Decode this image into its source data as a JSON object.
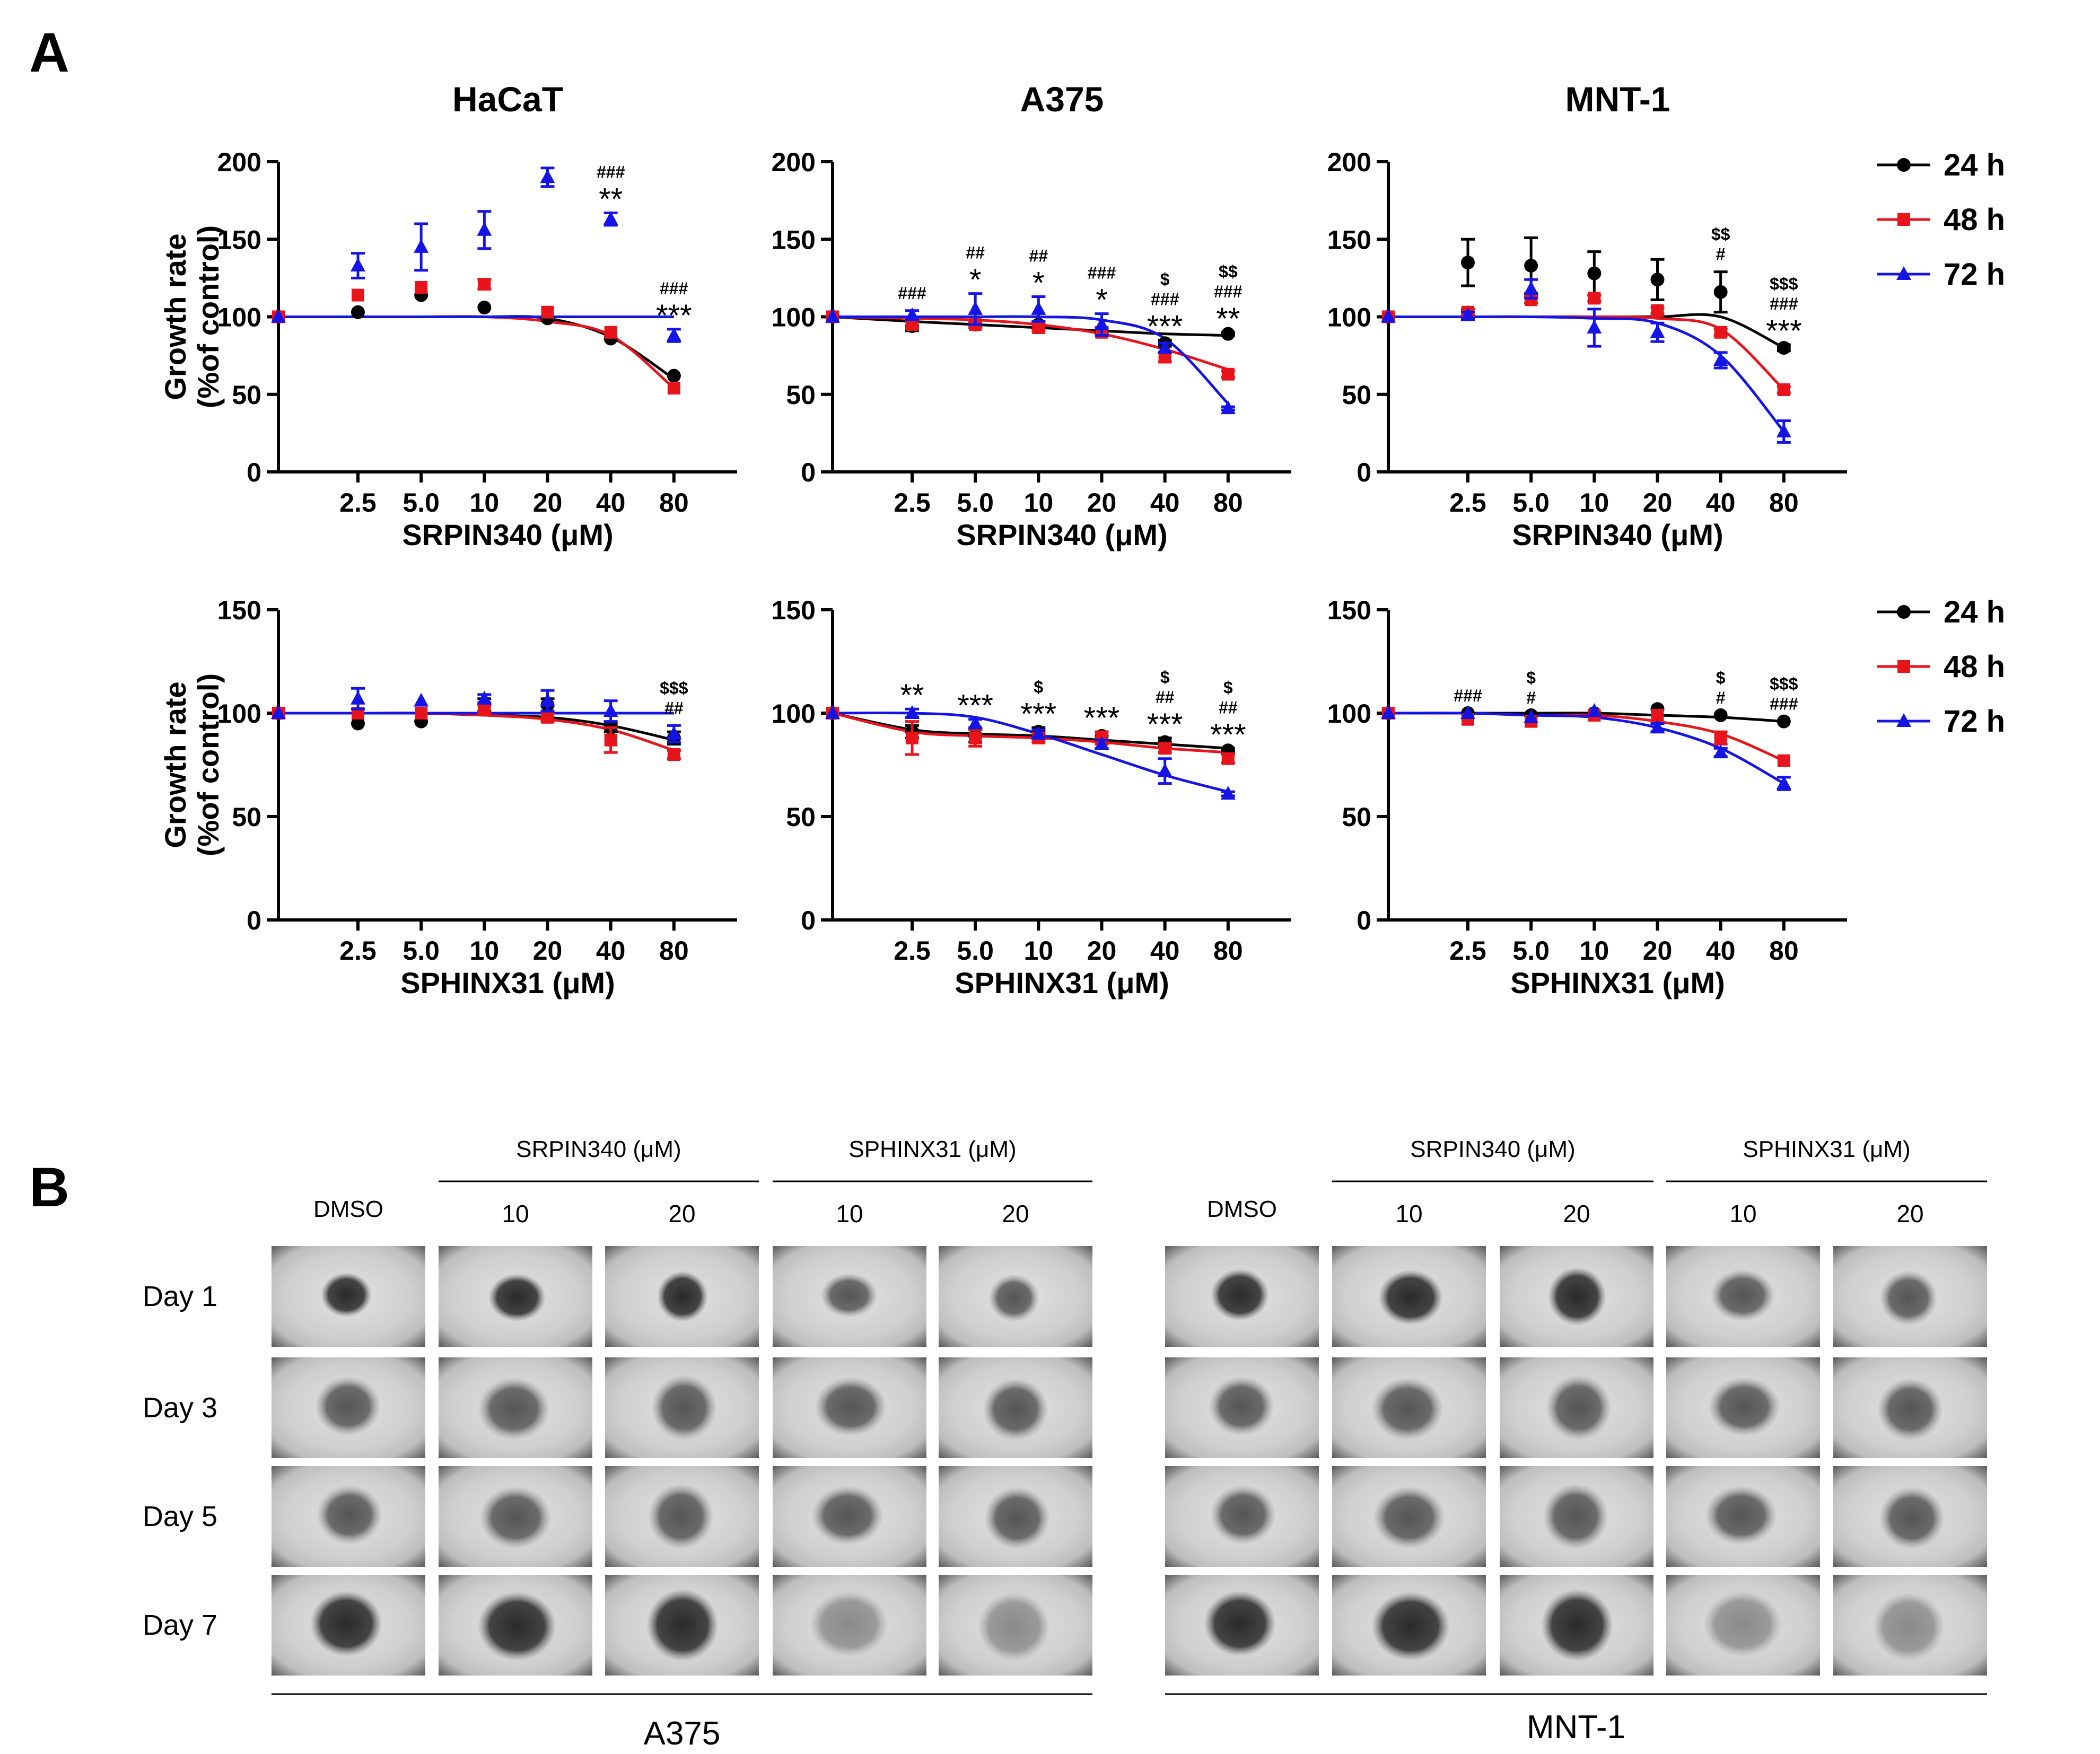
{
  "panel_a_label": "A",
  "panel_b_label": "B",
  "legend": [
    {
      "label": "24 h",
      "color": "#000000",
      "marker": "circle"
    },
    {
      "label": "48 h",
      "color": "#e8141b",
      "marker": "square"
    },
    {
      "label": "72 h",
      "color": "#1414e6",
      "marker": "triangle"
    }
  ],
  "chart_data": [
    {
      "type": "scatter",
      "title": "HaCaT",
      "xlabel": "SRPIN340 (μM)",
      "ylabel": "Growth rate (%of control)",
      "x": [
        0,
        2.5,
        5.0,
        10,
        20,
        40,
        80
      ],
      "x_tick_labels": [
        "2.5",
        "5.0",
        "10",
        "20",
        "40",
        "80"
      ],
      "ylim": [
        0,
        200
      ],
      "yticks": [
        0,
        50,
        100,
        150,
        200
      ],
      "x_scale": "log",
      "series": [
        {
          "name": "24 h",
          "values": [
            100,
            103,
            114,
            106,
            99,
            86,
            62
          ],
          "errors": [
            0,
            0,
            0,
            0,
            0,
            0,
            0
          ],
          "fit": [
            100,
            100,
            100,
            100,
            99,
            87,
            60
          ]
        },
        {
          "name": "48 h",
          "values": [
            100,
            114,
            119,
            121,
            103,
            90,
            54
          ],
          "errors": [
            0,
            0,
            0,
            3,
            0,
            0,
            0
          ],
          "fit": [
            100,
            100,
            100,
            100,
            97,
            88,
            54
          ]
        },
        {
          "name": "72 h",
          "values": [
            100,
            133,
            145,
            156,
            190,
            163,
            88
          ],
          "errors": [
            0,
            8,
            15,
            12,
            6,
            4,
            4
          ],
          "fit": [
            100,
            100,
            100,
            100,
            100,
            100,
            100
          ]
        }
      ],
      "annotations": [
        {
          "x": 40,
          "lines": [
            "###",
            "**"
          ]
        },
        {
          "x": 80,
          "lines": [
            "###",
            "***"
          ]
        }
      ]
    },
    {
      "type": "scatter",
      "title": "A375",
      "xlabel": "SRPIN340 (μM)",
      "ylabel": "",
      "x": [
        0,
        2.5,
        5.0,
        10,
        20,
        40,
        80
      ],
      "x_tick_labels": [
        "2.5",
        "5.0",
        "10",
        "20",
        "40",
        "80"
      ],
      "ylim": [
        0,
        200
      ],
      "yticks": [
        0,
        50,
        100,
        150,
        200
      ],
      "x_scale": "log",
      "series": [
        {
          "name": "24 h",
          "values": [
            100,
            94,
            95,
            95,
            91,
            83,
            89
          ],
          "errors": [
            0,
            3,
            2,
            2,
            2,
            2,
            1
          ],
          "fit": [
            100,
            97,
            95,
            93,
            91,
            89,
            88
          ]
        },
        {
          "name": "48 h",
          "values": [
            100,
            95,
            95,
            93,
            90,
            74,
            63
          ],
          "errors": [
            0,
            2,
            2,
            2,
            2,
            3,
            2
          ],
          "fit": [
            100,
            99,
            98,
            95,
            89,
            79,
            66
          ]
        },
        {
          "name": "72 h",
          "values": [
            100,
            101,
            105,
            105,
            95,
            80,
            41
          ],
          "errors": [
            0,
            3,
            10,
            8,
            7,
            3,
            1
          ],
          "fit": [
            100,
            100,
            100,
            100,
            98,
            86,
            44
          ]
        }
      ],
      "annotations": [
        {
          "x": 2.5,
          "lines": [
            "###"
          ]
        },
        {
          "x": 5.0,
          "lines": [
            "##",
            "*"
          ]
        },
        {
          "x": 10,
          "lines": [
            "##",
            "*"
          ]
        },
        {
          "x": 20,
          "lines": [
            "###",
            "*"
          ]
        },
        {
          "x": 40,
          "lines": [
            "$",
            "###",
            "***"
          ]
        },
        {
          "x": 80,
          "lines": [
            "$$",
            "###",
            "**"
          ]
        }
      ]
    },
    {
      "type": "scatter",
      "title": "MNT-1",
      "xlabel": "SRPIN340 (μM)",
      "ylabel": "",
      "x": [
        0,
        2.5,
        5.0,
        10,
        20,
        40,
        80
      ],
      "x_tick_labels": [
        "2.5",
        "5.0",
        "10",
        "20",
        "40",
        "80"
      ],
      "ylim": [
        0,
        200
      ],
      "yticks": [
        0,
        50,
        100,
        150,
        200
      ],
      "x_scale": "log",
      "series": [
        {
          "name": "24 h",
          "values": [
            100,
            135,
            133,
            128,
            124,
            116,
            80
          ],
          "errors": [
            0,
            15,
            18,
            14,
            13,
            13,
            2
          ],
          "fit": [
            100,
            100,
            100,
            100,
            100,
            100,
            80
          ]
        },
        {
          "name": "48 h",
          "values": [
            100,
            103,
            111,
            112,
            104,
            90,
            53
          ],
          "errors": [
            0,
            2,
            2,
            2,
            2,
            2,
            2
          ],
          "fit": [
            100,
            100,
            100,
            100,
            99,
            92,
            53
          ]
        },
        {
          "name": "72 h",
          "values": [
            100,
            101,
            118,
            93,
            90,
            72,
            26
          ],
          "errors": [
            0,
            2,
            6,
            12,
            6,
            5,
            7
          ],
          "fit": [
            100,
            100,
            100,
            99,
            96,
            75,
            26
          ]
        }
      ],
      "annotations": [
        {
          "x": 40,
          "lines": [
            "$$",
            "#"
          ]
        },
        {
          "x": 80,
          "lines": [
            "$$$",
            "###",
            "***"
          ]
        }
      ]
    },
    {
      "type": "scatter",
      "title": "",
      "xlabel": "SPHINX31 (μM)",
      "ylabel": "Growth rate (%of control)",
      "x": [
        0,
        2.5,
        5.0,
        10,
        20,
        40,
        80
      ],
      "x_tick_labels": [
        "2.5",
        "5.0",
        "10",
        "20",
        "40",
        "80"
      ],
      "ylim": [
        0,
        150
      ],
      "yticks": [
        0,
        50,
        100,
        150
      ],
      "x_scale": "log",
      "series": [
        {
          "name": "24 h",
          "values": [
            100,
            95,
            96,
            104,
            104,
            93,
            88
          ],
          "errors": [
            0,
            0,
            0,
            3,
            3,
            2,
            3
          ],
          "fit": [
            100,
            100,
            100,
            99,
            98,
            94,
            87
          ]
        },
        {
          "name": "48 h",
          "values": [
            100,
            100,
            100,
            102,
            98,
            87,
            80
          ],
          "errors": [
            0,
            0,
            0,
            2,
            2,
            6,
            2
          ],
          "fit": [
            100,
            100,
            100,
            99,
            97,
            92,
            82
          ]
        },
        {
          "name": "72 h",
          "values": [
            100,
            107,
            106,
            107,
            106,
            101,
            90
          ],
          "errors": [
            0,
            5,
            0,
            2,
            5,
            5,
            4
          ],
          "fit": [
            100,
            100,
            100,
            100,
            100,
            100,
            100
          ]
        }
      ],
      "annotations": [
        {
          "x": 80,
          "lines": [
            "$$$",
            "##"
          ]
        }
      ]
    },
    {
      "type": "scatter",
      "title": "",
      "xlabel": "SPHINX31 (μM)",
      "ylabel": "",
      "x": [
        0,
        2.5,
        5.0,
        10,
        20,
        40,
        80
      ],
      "x_tick_labels": [
        "2.5",
        "5.0",
        "10",
        "20",
        "40",
        "80"
      ],
      "ylim": [
        0,
        150
      ],
      "yticks": [
        0,
        50,
        100,
        150
      ],
      "x_scale": "log",
      "series": [
        {
          "name": "24 h",
          "values": [
            100,
            91,
            89,
            91,
            89,
            86,
            82
          ],
          "errors": [
            0,
            3,
            3,
            2,
            2,
            2,
            1
          ],
          "fit": [
            100,
            92,
            90,
            89,
            87,
            85,
            83
          ]
        },
        {
          "name": "48 h",
          "values": [
            100,
            88,
            88,
            88,
            88,
            83,
            78
          ],
          "errors": [
            0,
            8,
            4,
            2,
            3,
            2,
            2
          ],
          "fit": [
            100,
            91,
            89,
            88,
            86,
            83,
            81
          ]
        },
        {
          "name": "72 h",
          "values": [
            100,
            100,
            95,
            90,
            85,
            72,
            61
          ],
          "errors": [
            0,
            2,
            2,
            2,
            2,
            6,
            1
          ],
          "fit": [
            100,
            100,
            98,
            90,
            80,
            70,
            62
          ]
        }
      ],
      "annotations": [
        {
          "x": 2.5,
          "lines": [
            "**"
          ]
        },
        {
          "x": 5.0,
          "lines": [
            "***"
          ]
        },
        {
          "x": 10,
          "lines": [
            "$",
            "***"
          ]
        },
        {
          "x": 20,
          "lines": [
            "***"
          ]
        },
        {
          "x": 40,
          "lines": [
            "$",
            "##",
            "***"
          ]
        },
        {
          "x": 80,
          "lines": [
            "$",
            "##",
            "***"
          ]
        }
      ]
    },
    {
      "type": "scatter",
      "title": "",
      "xlabel": "SPHINX31 (μM)",
      "ylabel": "",
      "x": [
        0,
        2.5,
        5.0,
        10,
        20,
        40,
        80
      ],
      "x_tick_labels": [
        "2.5",
        "5.0",
        "10",
        "20",
        "40",
        "80"
      ],
      "ylim": [
        0,
        150
      ],
      "yticks": [
        0,
        50,
        100,
        150
      ],
      "x_scale": "log",
      "series": [
        {
          "name": "24 h",
          "values": [
            100,
            100,
            99,
            100,
            102,
            99,
            96
          ],
          "errors": [
            0,
            0,
            0,
            0,
            0,
            0,
            0
          ],
          "fit": [
            100,
            100,
            100,
            100,
            99,
            98,
            96
          ]
        },
        {
          "name": "48 h",
          "values": [
            100,
            97,
            96,
            99,
            99,
            88,
            77
          ],
          "errors": [
            0,
            0,
            0,
            0,
            0,
            3,
            0
          ],
          "fit": [
            100,
            100,
            99,
            99,
            96,
            90,
            77
          ]
        },
        {
          "name": "72 h",
          "values": [
            100,
            100,
            98,
            101,
            93,
            81,
            66
          ],
          "errors": [
            0,
            0,
            0,
            0,
            2,
            2,
            3
          ],
          "fit": [
            100,
            100,
            99,
            98,
            93,
            83,
            66
          ]
        }
      ],
      "annotations": [
        {
          "x": 2.5,
          "lines": [
            "###"
          ]
        },
        {
          "x": 5.0,
          "lines": [
            "$",
            "#"
          ]
        },
        {
          "x": 40,
          "lines": [
            "$",
            "#"
          ]
        },
        {
          "x": 80,
          "lines": [
            "$$$",
            "###"
          ]
        }
      ]
    }
  ],
  "panel_b": {
    "row_labels": [
      "Day 1",
      "Day 3",
      "Day 5",
      "Day 7"
    ],
    "groups": [
      {
        "cell_line": "A375",
        "dmso_label": "DMSO",
        "drugs": [
          {
            "name": "SRPIN340 (μM)",
            "doses": [
              "10",
              "20"
            ]
          },
          {
            "name": "SPHINX31 (μM)",
            "doses": [
              "10",
              "20"
            ]
          }
        ]
      },
      {
        "cell_line": "MNT-1",
        "dmso_label": "DMSO",
        "drugs": [
          {
            "name": "SRPIN340 (μM)",
            "doses": [
              "10",
              "20"
            ]
          },
          {
            "name": "SPHINX31 (μM)",
            "doses": [
              "10",
              "20"
            ]
          }
        ]
      }
    ]
  }
}
